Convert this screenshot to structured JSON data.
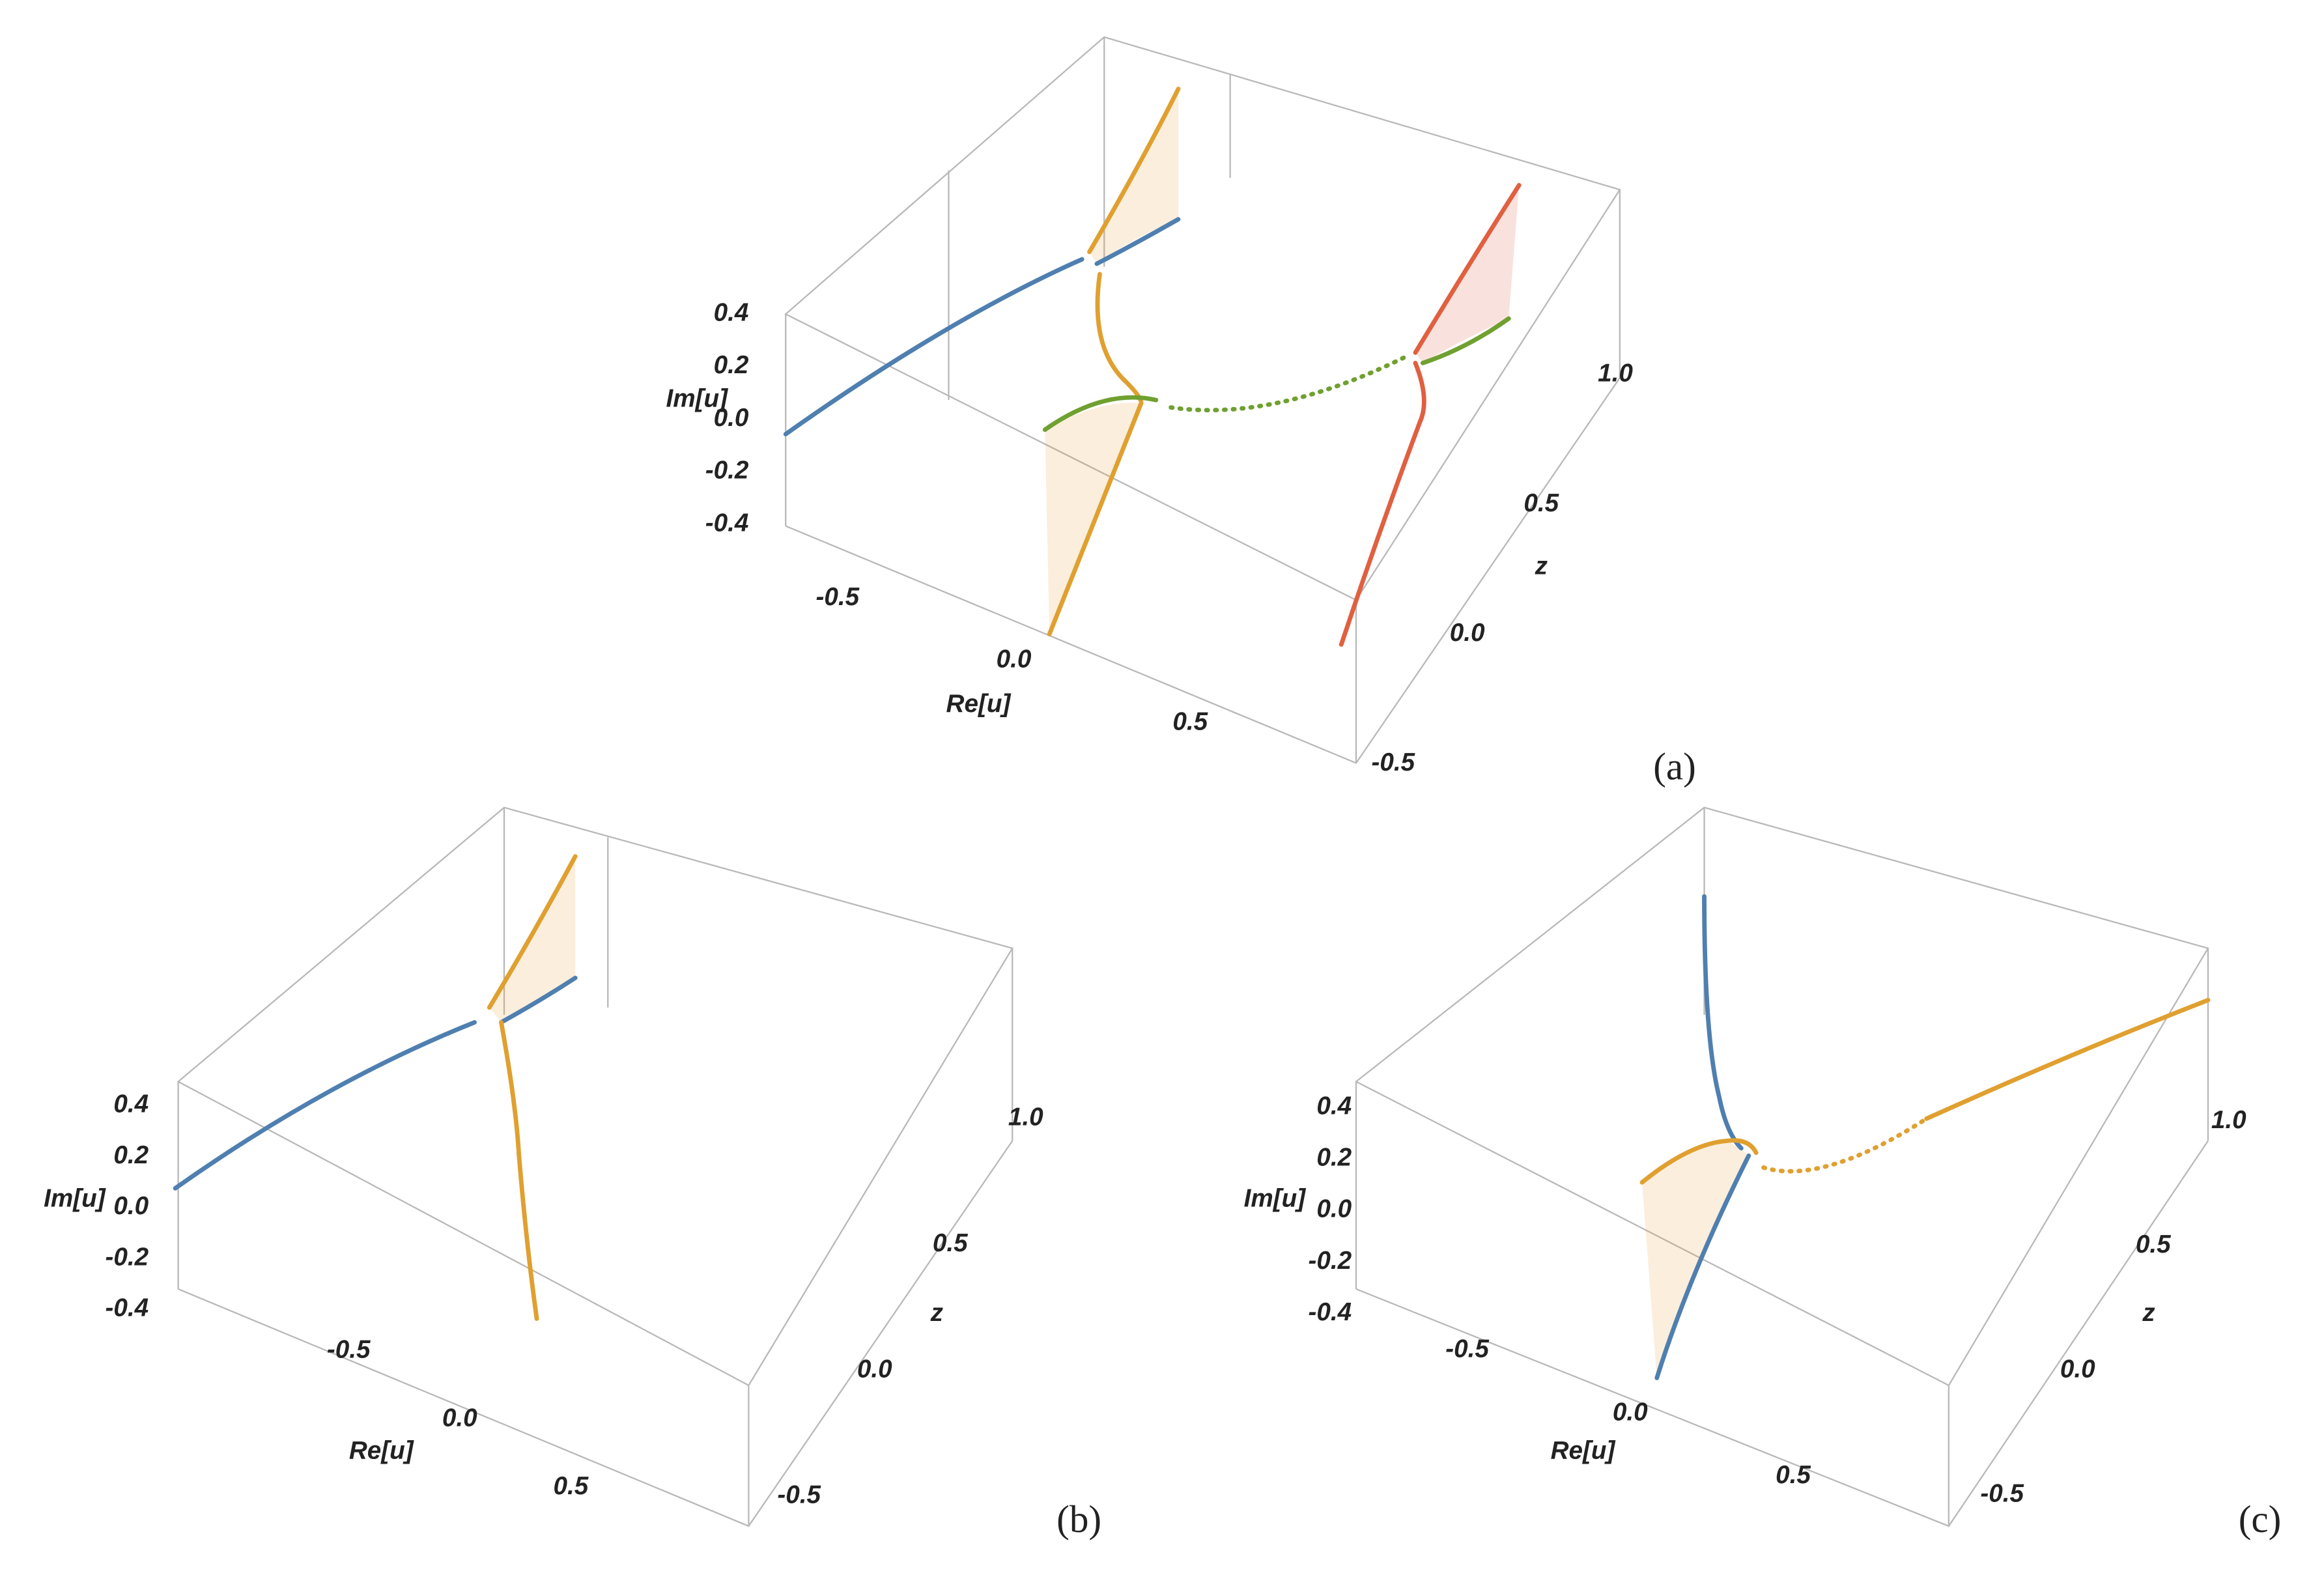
{
  "chart_data": [
    {
      "type": "line3d",
      "panel_label": "(a)",
      "xlabel": "Re[u]",
      "ylabel": "z",
      "zlabel": "Im[u]",
      "xticks": [
        -0.5,
        {
          "value": 0,
          "label": "0.0"
        },
        0.5
      ],
      "yticks": [
        -0.5,
        {
          "value": 0,
          "label": "0.0"
        },
        0.5,
        {
          "value": 1,
          "label": "1.0"
        }
      ],
      "zticks": [
        0.4,
        0.2,
        {
          "value": 0,
          "label": "0.0"
        },
        -0.2,
        -0.4
      ]
    },
    {
      "type": "line3d",
      "panel_label": "(b)",
      "xlabel": "Re[u]",
      "ylabel": "z",
      "zlabel": "Im[u]",
      "xticks": [
        -0.5,
        {
          "value": 0,
          "label": "0.0"
        },
        0.5
      ],
      "yticks": [
        -0.5,
        {
          "value": 0,
          "label": "0.0"
        },
        0.5,
        {
          "value": 1,
          "label": "1.0"
        }
      ],
      "zticks": [
        0.4,
        0.2,
        {
          "value": 0,
          "label": "0.0"
        },
        -0.2,
        -0.4
      ]
    },
    {
      "type": "line3d",
      "panel_label": "(c)",
      "xlabel": "Re[u]",
      "ylabel": "z",
      "zlabel": "Im[u]",
      "xticks": [
        -0.5,
        {
          "value": 0,
          "label": "0.0"
        },
        0.5
      ],
      "yticks": [
        -0.5,
        {
          "value": 0,
          "label": "0.0"
        },
        0.5,
        {
          "value": 1,
          "label": "1.0"
        }
      ],
      "zticks": [
        0.4,
        0.2,
        {
          "value": 0,
          "label": "0.0"
        },
        -0.2,
        -0.4
      ]
    }
  ]
}
